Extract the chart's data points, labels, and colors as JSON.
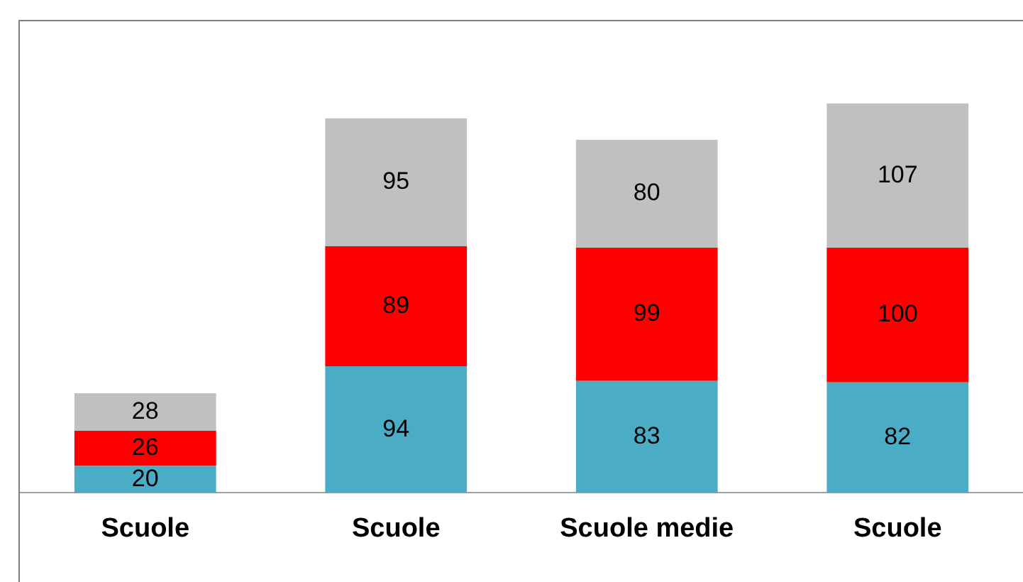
{
  "chart_data": {
    "type": "bar",
    "stacked": true,
    "data_labels": true,
    "legend": false,
    "categories": [
      "Scuole",
      "Scuole",
      "Scuole medie",
      "Scuole"
    ],
    "series": [
      {
        "color": "#4bacc6",
        "values": [
          20,
          94,
          83,
          82
        ]
      },
      {
        "color": "#ff0000",
        "values": [
          26,
          89,
          99,
          100
        ]
      },
      {
        "color": "#c0c0c0",
        "values": [
          28,
          95,
          80,
          107
        ]
      }
    ]
  }
}
